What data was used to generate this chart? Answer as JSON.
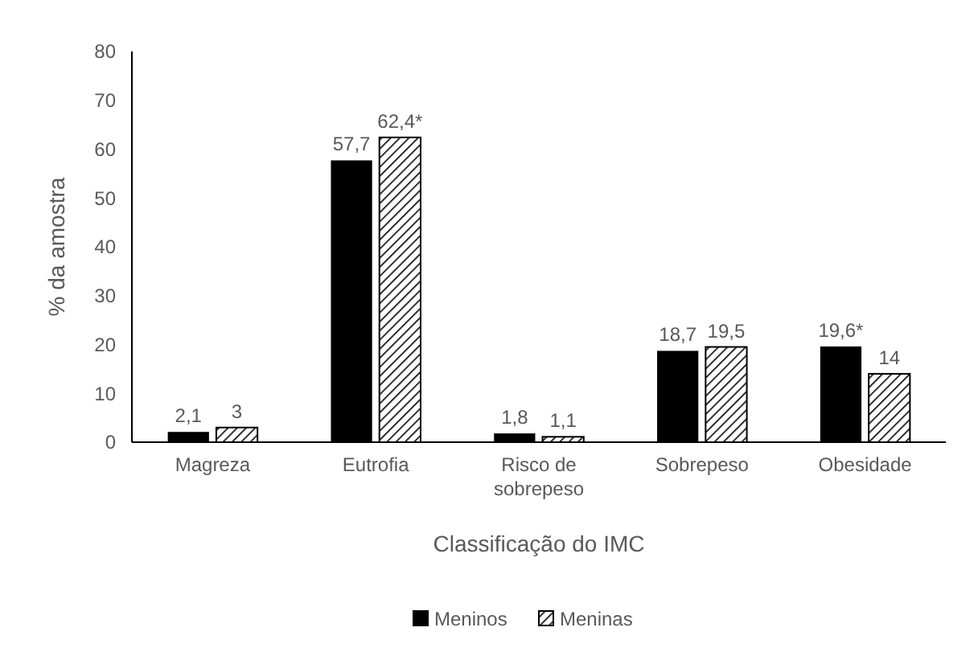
{
  "chart_data": {
    "type": "bar",
    "xlabel": "Classificação do IMC",
    "ylabel": "% da amostra",
    "categories": [
      "Magreza",
      "Eutrofia",
      "Risco de sobrepeso",
      "Sobrepeso",
      "Obesidade"
    ],
    "series": [
      {
        "name": "Meninos",
        "color": "#000000",
        "values": [
          2.1,
          57.7,
          1.8,
          18.7,
          19.6
        ],
        "value_labels": [
          "2,1",
          "57,7",
          "1,8",
          "18,7",
          "19,6*"
        ]
      },
      {
        "name": "Meninas",
        "color": "#000000",
        "values": [
          3,
          62.4,
          1.1,
          19.5,
          14
        ],
        "value_labels": [
          "3",
          "62,4*",
          "1,1",
          "19,5",
          "14"
        ]
      }
    ],
    "ylim": [
      0,
      80
    ],
    "yticks": [
      0,
      10,
      20,
      30,
      40,
      50,
      60,
      70,
      80
    ],
    "grid": false,
    "legend": "bottom"
  }
}
